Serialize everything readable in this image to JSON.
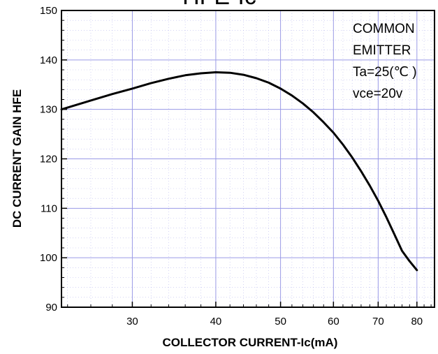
{
  "chart_data": {
    "type": "line",
    "title": "HFE-Ic",
    "xlabel": "COLLECTOR CURRENT-Ic(mA)",
    "ylabel": "DC CURRENT GAIN  HFE",
    "x_scale": "log",
    "xlim": [
      23.5,
      85
    ],
    "ylim": [
      90,
      150
    ],
    "x_ticks": [
      30,
      40,
      50,
      60,
      70,
      80
    ],
    "x_tick_labels": [
      "30",
      "40",
      "50",
      "60",
      "70",
      "80"
    ],
    "y_ticks": [
      90,
      100,
      110,
      120,
      130,
      140,
      150
    ],
    "y_tick_labels": [
      "90",
      "100",
      "110",
      "120",
      "130",
      "140",
      "150"
    ],
    "grid": true,
    "annotation": [
      "COMMON",
      "EMITTER",
      "Ta=25(℃ )",
      "vce=20v"
    ],
    "series": [
      {
        "x": [
          23.5,
          26,
          28,
          30,
          32,
          34,
          36,
          38,
          40,
          42,
          44,
          46,
          48,
          50,
          52,
          54,
          56,
          58,
          60,
          62,
          64,
          66,
          68,
          70,
          72,
          74,
          76,
          78,
          80
        ],
        "y": [
          130.0,
          131.8,
          133.1,
          134.2,
          135.3,
          136.2,
          136.9,
          137.3,
          137.5,
          137.4,
          137.0,
          136.3,
          135.4,
          134.2,
          132.8,
          131.2,
          129.4,
          127.4,
          125.3,
          122.9,
          120.3,
          117.5,
          114.6,
          111.5,
          108.2,
          104.8,
          101.4,
          99.3,
          97.5
        ]
      }
    ],
    "colors": {
      "curve": "#000000",
      "grid": "#9a9ae6",
      "axes": "#000000"
    }
  }
}
